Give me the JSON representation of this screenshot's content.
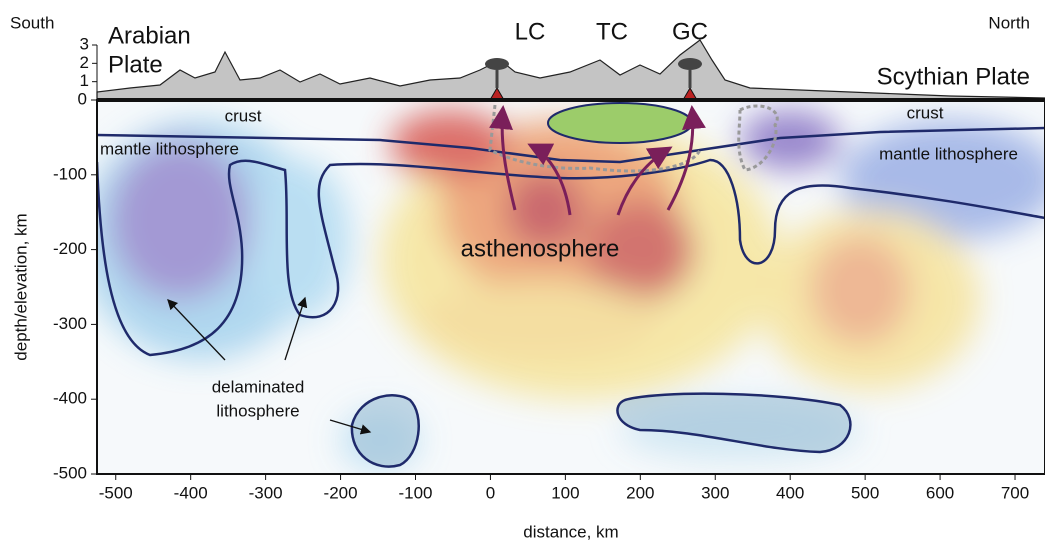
{
  "chart_data": {
    "type": "cross-section",
    "xlabel": "distance, km",
    "ylabel": "depth/elevation, km",
    "xlim": [
      -525,
      740
    ],
    "xticks": [
      -500,
      -400,
      -300,
      -200,
      -100,
      0,
      100,
      200,
      300,
      400,
      500,
      600,
      700
    ],
    "ylim": [
      -500,
      0
    ],
    "yticks": [
      -500,
      -400,
      -300,
      -200,
      -100,
      0
    ],
    "y2lim": [
      0,
      3
    ],
    "y2ticks": [
      1,
      2,
      3
    ],
    "direction_labels": [
      "South",
      "North"
    ],
    "plates": [
      [
        "Arabian",
        "Plate"
      ],
      [
        "Scythian Plate"
      ]
    ],
    "volcanic_centers": [
      "LC",
      "TC",
      "GC"
    ],
    "annotations": [
      "crust",
      "crust",
      "mantle lithosphere",
      "mantle lithosphere",
      "asthenosphere",
      [
        "delaminated",
        "lithosphere"
      ]
    ]
  }
}
